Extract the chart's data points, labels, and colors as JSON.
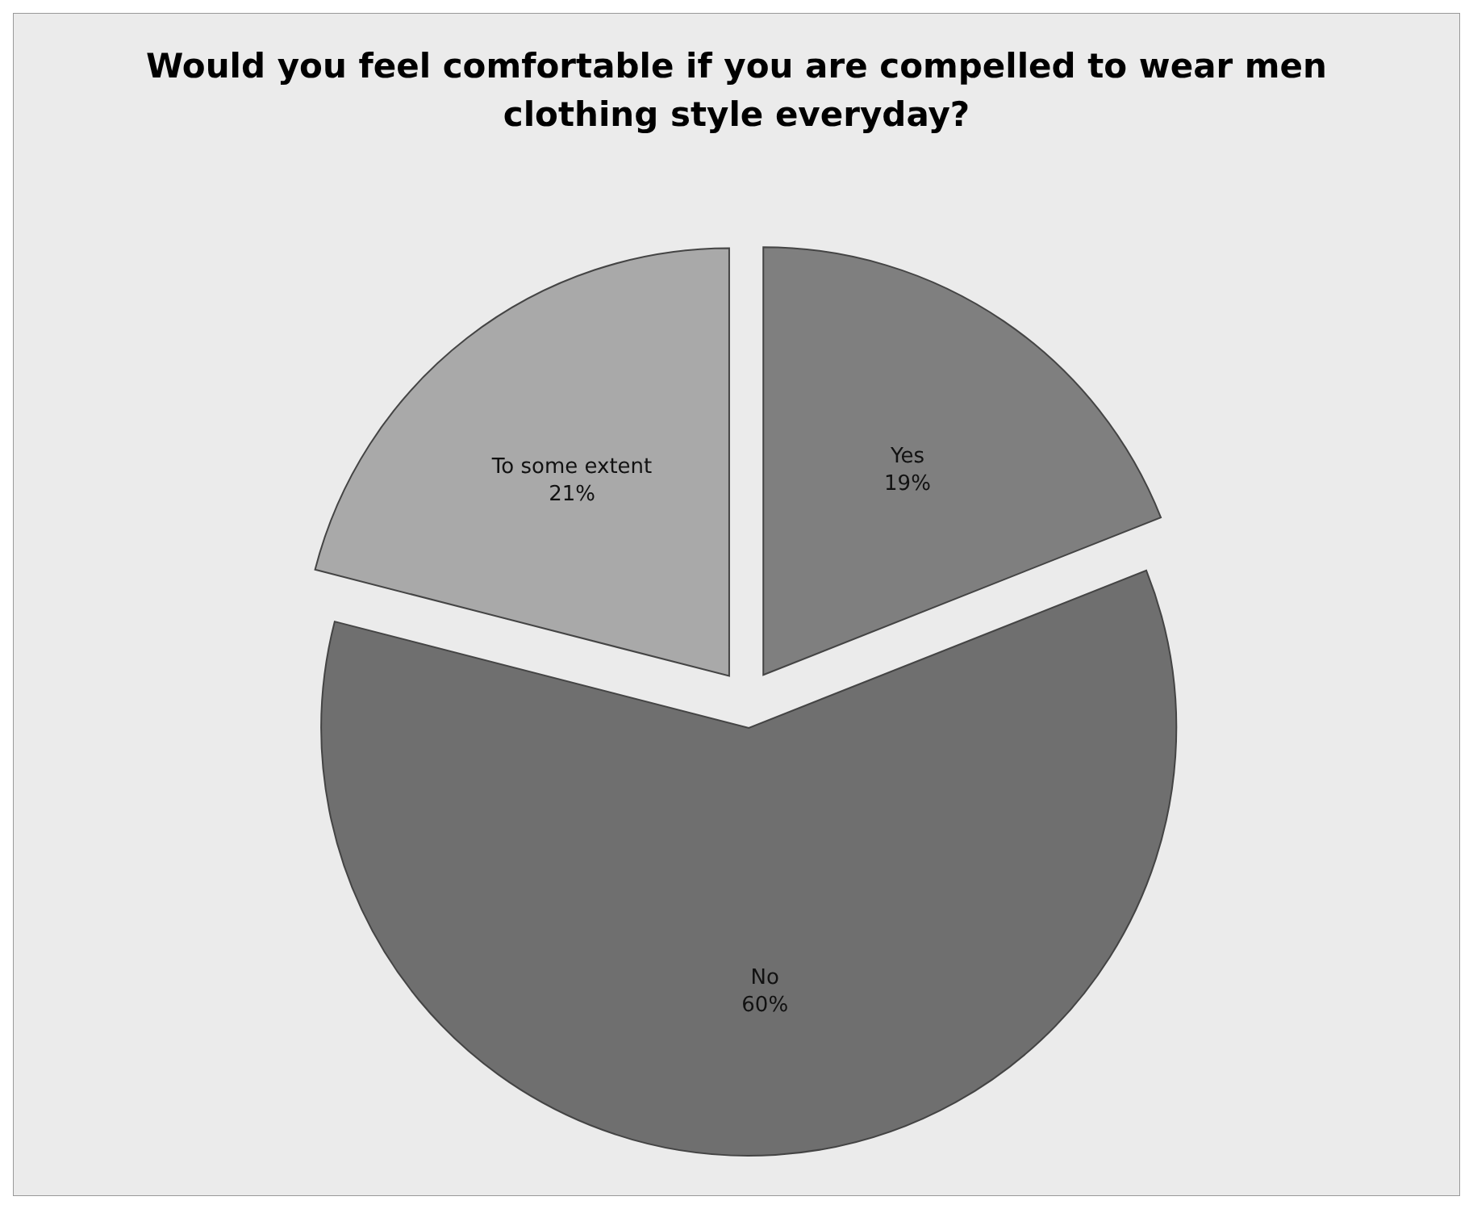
{
  "chart_data": {
    "type": "pie",
    "title": "Would you feel comfortable if you are compelled to wear men clothing style everyday?",
    "categories": [
      "Yes",
      "No",
      "To some extent"
    ],
    "values": [
      19,
      60,
      21
    ],
    "value_labels": [
      "19%",
      "60%",
      "21%"
    ],
    "colors": [
      "#7f7f7f",
      "#6f6f6f",
      "#a9a9a9"
    ]
  }
}
